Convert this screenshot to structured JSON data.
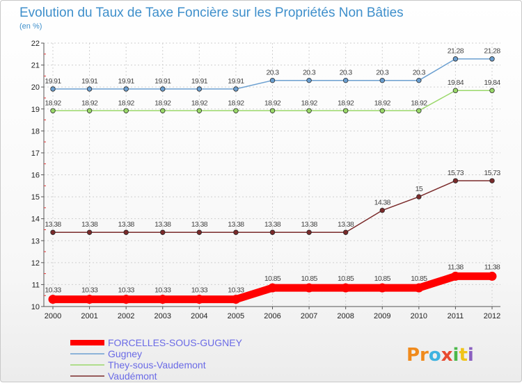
{
  "chart_data": {
    "type": "line",
    "title": "Evolution du Taux de Taxe Foncière sur les Propriétés Non Bâties",
    "ylabel": "(en %)",
    "xlabel": "",
    "ylim": [
      10,
      22
    ],
    "categories": [
      "2000",
      "2001",
      "2002",
      "2003",
      "2004",
      "2005",
      "2006",
      "2007",
      "2008",
      "2009",
      "2010",
      "2011",
      "2012"
    ],
    "yticks": [
      "10",
      "11",
      "12",
      "13",
      "14",
      "15",
      "16",
      "17",
      "18",
      "19",
      "20",
      "21",
      "22"
    ],
    "series": [
      {
        "name": "FORCELLES-SOUS-GUGNEY",
        "color": "#ff0000",
        "labels": [
          "10.33",
          "10.33",
          "10.33",
          "10.33",
          "10.33",
          "10.33",
          "10.85",
          "10.85",
          "10.85",
          "10.85",
          "10.85",
          "11.38",
          "11.38"
        ],
        "values": [
          10.33,
          10.33,
          10.33,
          10.33,
          10.33,
          10.33,
          10.85,
          10.85,
          10.85,
          10.85,
          10.85,
          11.38,
          11.38
        ]
      },
      {
        "name": "Gugney",
        "color": "#6b9fd0",
        "labels": [
          "19.91",
          "19.91",
          "19.91",
          "19.91",
          "19.91",
          "19.91",
          "20.3",
          "20.3",
          "20.3",
          "20.3",
          "20.3",
          "21.28",
          "21.28"
        ],
        "values": [
          19.91,
          19.91,
          19.91,
          19.91,
          19.91,
          19.91,
          20.3,
          20.3,
          20.3,
          20.3,
          20.3,
          21.28,
          21.28
        ]
      },
      {
        "name": "They-sous-Vaudemont",
        "color": "#9ad86a",
        "labels": [
          "18.92",
          "18.92",
          "18.92",
          "18.92",
          "18.92",
          "18.92",
          "18.92",
          "18.92",
          "18.92",
          "18.92",
          "18.92",
          "19.84",
          "19.84"
        ],
        "values": [
          18.92,
          18.92,
          18.92,
          18.92,
          18.92,
          18.92,
          18.92,
          18.92,
          18.92,
          18.92,
          18.92,
          19.84,
          19.84
        ]
      },
      {
        "name": "Vaudémont",
        "color": "#7a2a2a",
        "labels": [
          "13.38",
          "13.38",
          "13.38",
          "13.38",
          "13.38",
          "13.38",
          "13.38",
          "13.38",
          "13.38",
          "14.38",
          "15",
          "15.73",
          "15.73"
        ],
        "values": [
          13.38,
          13.38,
          13.38,
          13.38,
          13.38,
          13.38,
          13.38,
          13.38,
          13.38,
          14.38,
          15,
          15.73,
          15.73
        ]
      }
    ],
    "legend_position": "bottom-left",
    "logo": "Proxiti"
  }
}
